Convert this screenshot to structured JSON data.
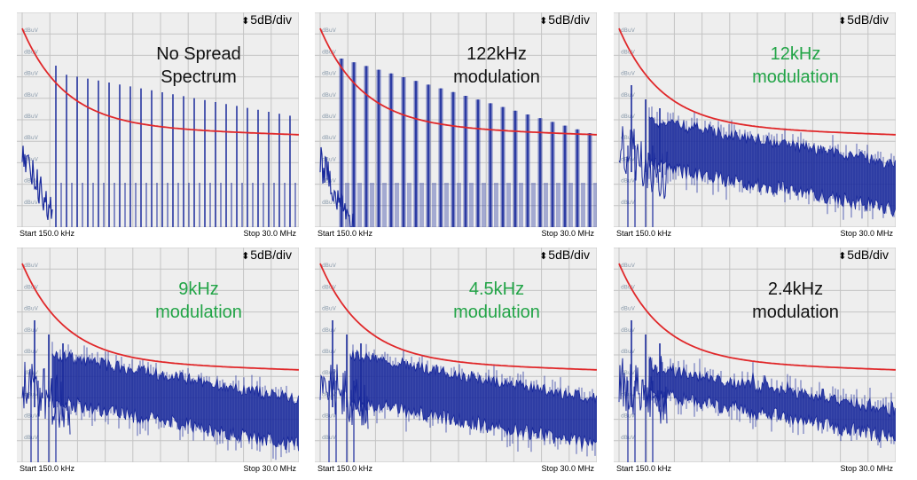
{
  "chart_data": [
    {
      "type": "line",
      "title_lines": [
        "No Spread",
        "Spectrum"
      ],
      "title_color": "#111111",
      "scale": "5dB/div",
      "x_start": "Start 150.0 kHz",
      "x_stop": "Stop 30.0 MHz",
      "y_unit": "dBuV",
      "mode": "nospread",
      "limit_line_color": "#e0282a",
      "trace_color": "#1a2a9c"
    },
    {
      "type": "line",
      "title_lines": [
        "122kHz",
        "modulation"
      ],
      "title_color": "#111111",
      "scale": "5dB/div",
      "x_start": "Start 150.0 kHz",
      "x_stop": "Stop 30.0 MHz",
      "y_unit": "dBuV",
      "mode": "spread122",
      "limit_line_color": "#e0282a",
      "trace_color": "#1a2a9c"
    },
    {
      "type": "line",
      "title_lines": [
        "12kHz",
        "modulation"
      ],
      "title_color": "#22a447",
      "scale": "5dB/div",
      "x_start": "Start 150.0 kHz",
      "x_stop": "Stop 30.0 MHz",
      "y_unit": "dBuV",
      "mode": "noise",
      "limit_line_color": "#e0282a",
      "trace_color": "#1a2a9c"
    },
    {
      "type": "line",
      "title_lines": [
        "9kHz",
        "modulation"
      ],
      "title_color": "#22a447",
      "scale": "5dB/div",
      "x_start": "Start 150.0 kHz",
      "x_stop": "Stop 30.0 MHz",
      "y_unit": "dBuV",
      "mode": "noise",
      "limit_line_color": "#e0282a",
      "trace_color": "#1a2a9c"
    },
    {
      "type": "line",
      "title_lines": [
        "4.5kHz",
        "modulation"
      ],
      "title_color": "#22a447",
      "scale": "5dB/div",
      "x_start": "Start 150.0 kHz",
      "x_stop": "Stop 30.0 MHz",
      "y_unit": "dBuV",
      "mode": "noise",
      "limit_line_color": "#e0282a",
      "trace_color": "#1a2a9c"
    },
    {
      "type": "line",
      "title_lines": [
        "2.4kHz",
        "modulation"
      ],
      "title_color": "#111111",
      "scale": "5dB/div",
      "x_start": "Start 150.0 kHz",
      "x_stop": "Stop 30.0 MHz",
      "y_unit": "dBuV",
      "mode": "comb",
      "limit_line_color": "#e0282a",
      "trace_color": "#1a2a9c"
    }
  ]
}
